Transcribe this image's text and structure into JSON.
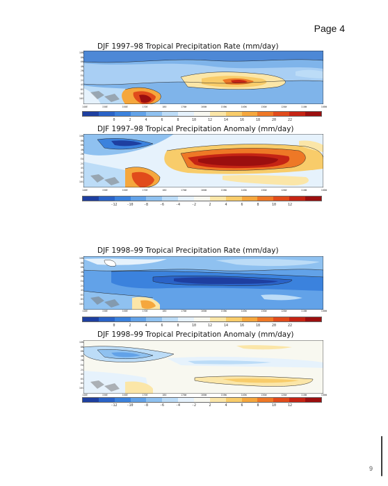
{
  "page": {
    "header": "Page 4",
    "number": "9"
  },
  "lat_ticks": [
    "10N",
    "8N",
    "6N",
    "4N",
    "2N",
    "EQ",
    "2S",
    "4S",
    "6S",
    "8S",
    "10S"
  ],
  "lon_ticks": [
    "140E",
    "150E",
    "160E",
    "170E",
    "180",
    "170W",
    "160W",
    "150W",
    "140W",
    "130W",
    "120W",
    "110W",
    "100W"
  ],
  "colors": {
    "blues": [
      "#1e3fa0",
      "#2a63c7",
      "#3b82dd",
      "#62a2e8",
      "#8fc1f0",
      "#bcdcf7",
      "#e6f2fc"
    ],
    "neutral": "#f8f8f0",
    "warms": [
      "#fbe6a8",
      "#f8cc6a",
      "#f5a73d",
      "#ee7826",
      "#e14b1b",
      "#c52414",
      "#9b0f0f"
    ]
  },
  "figures": [
    {
      "title": "DJF 1997–98 Tropical Precipitation Rate (mm/day)",
      "kind": "rate",
      "colorbar_labels": [
        "0",
        "2",
        "4",
        "6",
        "8",
        "10",
        "12",
        "14",
        "16",
        "18",
        "20",
        "22"
      ]
    },
    {
      "title": "DJF 1997–98 Tropical Precipitation Anomaly (mm/day)",
      "kind": "anomaly-el-nino",
      "colorbar_labels": [
        "-12",
        "-10",
        "-8",
        "-6",
        "-4",
        "-2",
        "2",
        "4",
        "6",
        "8",
        "10",
        "12"
      ]
    },
    {
      "title": "DJF 1998–99 Tropical Precipitation Rate (mm/day)",
      "kind": "rate-la-nina",
      "colorbar_labels": [
        "0",
        "2",
        "4",
        "6",
        "8",
        "10",
        "12",
        "14",
        "16",
        "18",
        "20",
        "22"
      ]
    },
    {
      "title": "DJF 1998–99 Tropical Precipitation Anomaly (mm/day)",
      "kind": "anomaly-la-nina",
      "colorbar_labels": [
        "-12",
        "-10",
        "-8",
        "-6",
        "-4",
        "-2",
        "2",
        "4",
        "6",
        "8",
        "10",
        "12"
      ]
    }
  ]
}
